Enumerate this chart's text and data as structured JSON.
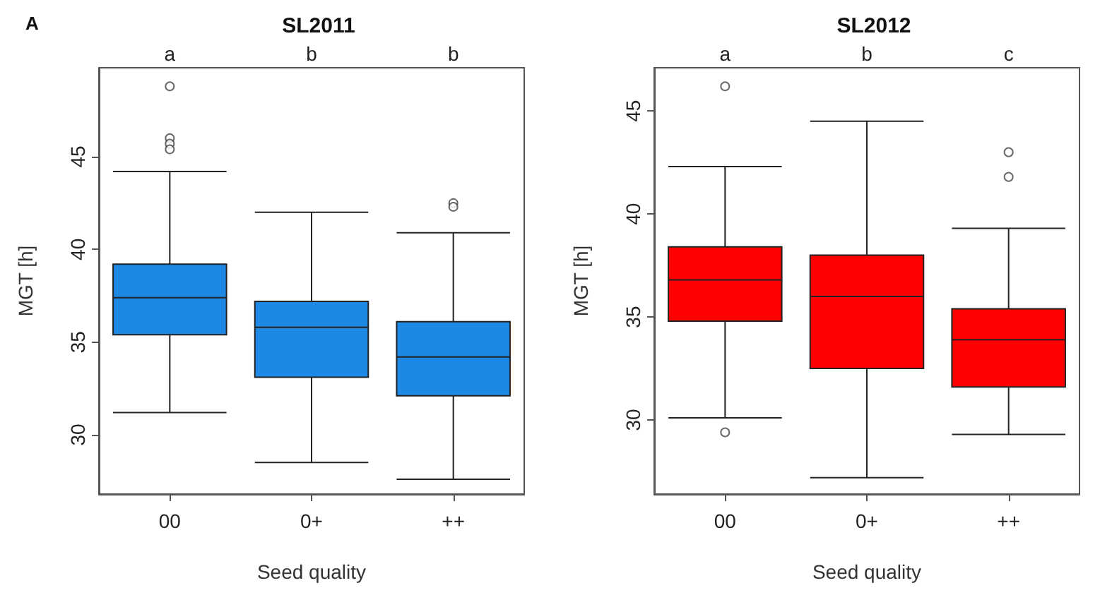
{
  "chart_data": [
    {
      "type": "box",
      "title": "SL2011",
      "xlabel": "Seed quality",
      "ylabel": "MGT [h]",
      "categories": [
        "00",
        "0+",
        "++"
      ],
      "ylim": [
        26.8,
        49.8
      ],
      "yticks": [
        30,
        35,
        40,
        45
      ],
      "grid": false,
      "annotations": [
        "A",
        "a",
        "b",
        "b"
      ],
      "series": [
        {
          "color": "#1e88e5",
          "boxes": [
            {
              "low": 31.2,
              "q1": 35.4,
              "median": 37.4,
              "q3": 39.2,
              "high": 44.2,
              "outliers": [
                48.8,
                46.0,
                45.7,
                45.4
              ]
            },
            {
              "low": 28.5,
              "q1": 33.1,
              "median": 35.8,
              "q3": 37.2,
              "high": 42.0
            },
            {
              "low": 27.6,
              "q1": 32.1,
              "median": 34.2,
              "q3": 36.1,
              "high": 40.9,
              "outliers": [
                42.5,
                42.3
              ]
            }
          ]
        }
      ]
    },
    {
      "type": "box",
      "title": "SL2012",
      "xlabel": "Seed quality",
      "ylabel": "MGT [h]",
      "categories": [
        "00",
        "0+",
        "++"
      ],
      "ylim": [
        26.4,
        47.1
      ],
      "yticks": [
        30,
        35,
        40,
        45
      ],
      "grid": false,
      "annotations": [
        "a",
        "b",
        "c"
      ],
      "series": [
        {
          "color": "#ff0000",
          "boxes": [
            {
              "low": 30.1,
              "q1": 34.8,
              "median": 36.8,
              "q3": 38.4,
              "high": 42.3,
              "outliers": [
                46.2,
                29.4
              ]
            },
            {
              "low": 27.2,
              "q1": 32.5,
              "median": 36.0,
              "q3": 38.0,
              "high": 44.5
            },
            {
              "low": 29.3,
              "q1": 31.6,
              "median": 33.9,
              "q3": 35.4,
              "high": 39.3,
              "outliers": [
                43.0,
                41.8
              ]
            }
          ]
        }
      ]
    }
  ]
}
